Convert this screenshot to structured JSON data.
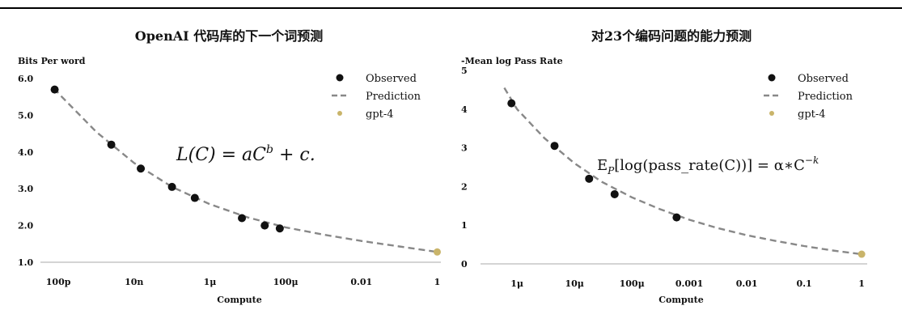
{
  "chart_data": [
    {
      "type": "scatter",
      "title": "OpenAI 代码库的下一个词预测",
      "xlabel": "Compute",
      "ylabel": "Bits Per word",
      "x_scale": "log",
      "xlim": [
        5e-11,
        1.25
      ],
      "ylim": [
        1.0,
        6.0
      ],
      "x_ticks": [
        1e-10,
        1e-08,
        1e-06,
        0.0001,
        0.01,
        1
      ],
      "x_tick_labels": [
        "100p",
        "10n",
        "1μ",
        "100μ",
        "0.01",
        "1"
      ],
      "y_ticks": [
        1,
        2,
        3,
        4,
        5,
        6
      ],
      "y_tick_labels": [
        "1.0",
        "2.0",
        "3.0",
        "4.0",
        "5.0",
        "6.0"
      ],
      "equation": "L(C) = aC^b + c",
      "legend_position": "top-right",
      "grid": false,
      "series": [
        {
          "name": "Observed",
          "marker": "circle",
          "color": "#111111",
          "x": [
            8e-11,
            2.5e-09,
            1.5e-08,
            1e-07,
            4e-07,
            7e-06,
            2.8e-05,
            7e-05
          ],
          "y": [
            5.7,
            4.2,
            3.55,
            3.05,
            2.75,
            2.2,
            2.0,
            1.92
          ]
        },
        {
          "name": "Prediction",
          "type": "line",
          "style": "dashed",
          "color": "#888888",
          "x": [
            8e-11,
            1e-10,
            1e-09,
            1e-08,
            1e-07,
            1e-06,
            1e-05,
            0.0001,
            0.001,
            0.01,
            0.1,
            1
          ],
          "y": [
            5.75,
            5.6,
            4.55,
            3.7,
            3.05,
            2.58,
            2.22,
            1.95,
            1.75,
            1.58,
            1.43,
            1.28
          ]
        },
        {
          "name": "gpt-4",
          "marker": "circle",
          "color": "#c9b46a",
          "x": [
            1
          ],
          "y": [
            1.28
          ]
        }
      ]
    },
    {
      "type": "scatter",
      "title": "对23个编码问题的能力预测",
      "xlabel": "Compute",
      "ylabel": "-Mean log Pass Rate",
      "x_scale": "log",
      "xlim": [
        3e-07,
        1.25
      ],
      "ylim": [
        0,
        5
      ],
      "x_ticks": [
        1e-06,
        1e-05,
        0.0001,
        0.001,
        0.01,
        0.1,
        1
      ],
      "x_tick_labels": [
        "1μ",
        "10μ",
        "100μ",
        "0.001",
        "0.01",
        "0.1",
        "1"
      ],
      "y_ticks": [
        0,
        1,
        2,
        3,
        4,
        5
      ],
      "y_tick_labels": [
        "0",
        "1",
        "2",
        "3",
        "4",
        "5"
      ],
      "equation": "E_P[log(pass_rate(C))] = α∗C^(−k)",
      "legend_position": "top-right",
      "grid": false,
      "series": [
        {
          "name": "Observed",
          "marker": "circle",
          "color": "#111111",
          "x": [
            8e-07,
            4.5e-06,
            1.8e-05,
            5e-05,
            0.0006
          ],
          "y": [
            4.15,
            3.05,
            2.2,
            1.8,
            1.2
          ]
        },
        {
          "name": "Prediction",
          "type": "line",
          "style": "dashed",
          "color": "#888888",
          "x": [
            6e-07,
            1e-06,
            3e-06,
            1e-05,
            3e-05,
            0.0001,
            0.0003,
            0.001,
            0.003,
            0.01,
            0.03,
            0.1,
            0.3,
            1
          ],
          "y": [
            4.55,
            4.0,
            3.25,
            2.6,
            2.12,
            1.72,
            1.42,
            1.14,
            0.93,
            0.74,
            0.6,
            0.46,
            0.35,
            0.25
          ]
        },
        {
          "name": "gpt-4",
          "marker": "circle",
          "color": "#c9b46a",
          "x": [
            1
          ],
          "y": [
            0.25
          ]
        }
      ]
    }
  ]
}
